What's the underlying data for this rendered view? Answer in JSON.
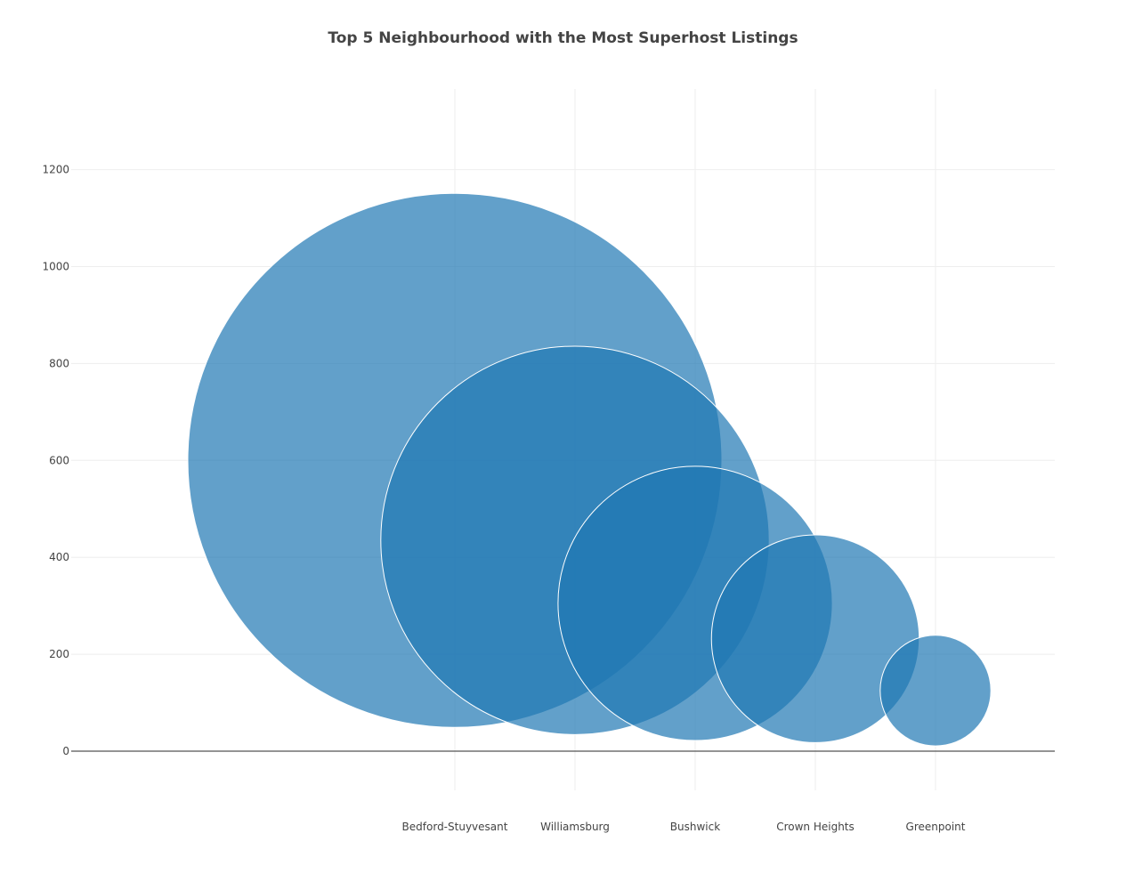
{
  "chart_data": {
    "type": "scatter",
    "title": "Top 5 Neighbourhood with the Most Superhost Listings",
    "xlabel": "",
    "ylabel": "",
    "categories": [
      "Bedford-Stuyvesant",
      "Williamsburg",
      "Bushwick",
      "Crown Heights",
      "Greenpoint"
    ],
    "values": [
      600,
      435,
      305,
      232,
      125
    ],
    "bubble_sizes": [
      1100,
      800,
      565,
      428,
      228
    ],
    "ylim": [
      -195,
      1370
    ],
    "yticks": [
      0,
      200,
      400,
      600,
      800,
      1000,
      1200
    ],
    "grid": true,
    "marker_color": "#1f77b4",
    "marker_opacity": 0.7
  }
}
